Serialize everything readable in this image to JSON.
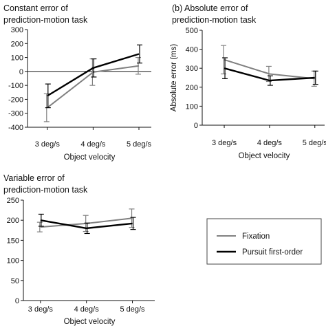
{
  "legend": {
    "items": [
      {
        "label": "Fixation",
        "color": "#808080"
      },
      {
        "label": "Pursuit first-order",
        "color": "#000000"
      }
    ],
    "placement": "bottom-right"
  },
  "chart_data": [
    {
      "type": "line",
      "id": "constant",
      "title": [
        "Constant error of",
        "prediction-motion task"
      ],
      "xlabel": "Object velocity",
      "ylabel": "",
      "categories": [
        "3 deg/s",
        "4 deg/s",
        "5 deg/s"
      ],
      "ylim": [
        -400,
        300
      ],
      "yticks": [
        -400,
        -300,
        -200,
        -100,
        0,
        100,
        200,
        300
      ],
      "zero_line": true,
      "series": [
        {
          "name": "Fixation",
          "color": "#808080",
          "values": [
            -260,
            -5,
            40
          ],
          "err": [
            100,
            95,
            60
          ]
        },
        {
          "name": "Pursuit first-order",
          "color": "#000000",
          "values": [
            -175,
            25,
            125
          ],
          "err": [
            85,
            65,
            65
          ]
        }
      ]
    },
    {
      "type": "line",
      "id": "absolute",
      "title": [
        "(b) Absolute error of",
        "prediction-motion task"
      ],
      "xlabel": "Object velocity",
      "ylabel": "Absolute error (ms)",
      "categories": [
        "3 deg/s",
        "4 deg/s",
        "5 deg/s"
      ],
      "ylim": [
        0,
        500
      ],
      "yticks": [
        0,
        100,
        200,
        300,
        400,
        500
      ],
      "zero_line": false,
      "series": [
        {
          "name": "Fixation",
          "color": "#808080",
          "values": [
            345,
            270,
            245
          ],
          "err": [
            75,
            40,
            40
          ]
        },
        {
          "name": "Pursuit first-order",
          "color": "#000000",
          "values": [
            300,
            235,
            250
          ],
          "err": [
            55,
            25,
            35
          ]
        }
      ]
    },
    {
      "type": "line",
      "id": "variable",
      "title": [
        "Variable error of",
        "prediction-motion task"
      ],
      "xlabel": "Object velocity",
      "ylabel": "",
      "categories": [
        "3 deg/s",
        "4 deg/s",
        "5 deg/s"
      ],
      "ylim": [
        0,
        250
      ],
      "yticks": [
        0,
        50,
        100,
        150,
        200,
        250
      ],
      "zero_line": false,
      "series": [
        {
          "name": "Fixation",
          "color": "#808080",
          "values": [
            183,
            192,
            205
          ],
          "err": [
            12,
            20,
            23
          ]
        },
        {
          "name": "Pursuit first-order",
          "color": "#000000",
          "values": [
            200,
            180,
            192
          ],
          "err": [
            15,
            13,
            15
          ]
        }
      ]
    }
  ]
}
